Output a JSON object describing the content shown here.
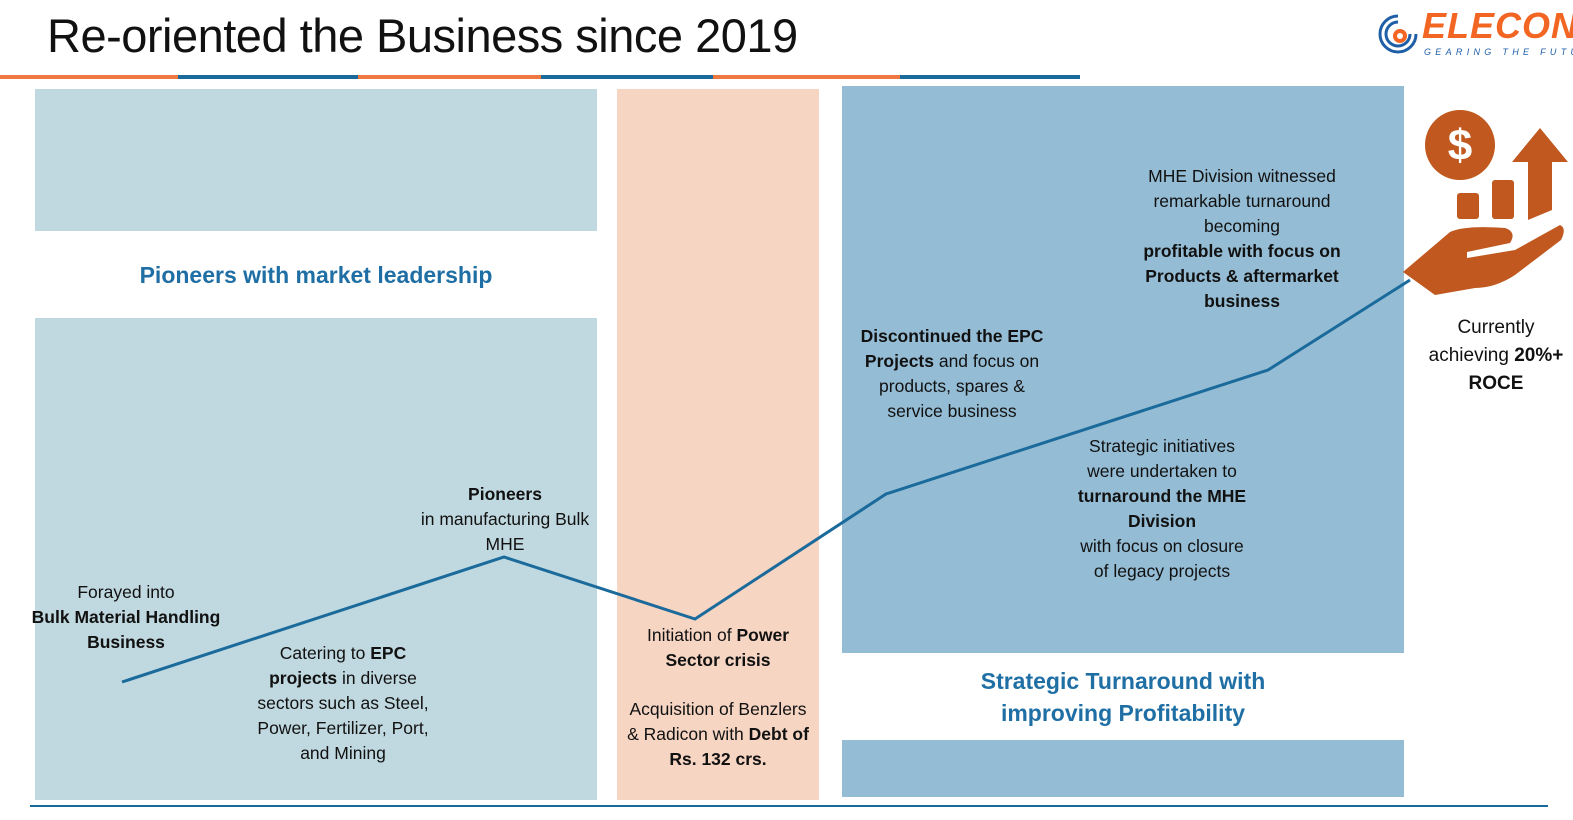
{
  "title": "Re-oriented the Business since 2019",
  "logo": {
    "name": "ELECON",
    "tagline": "GEARING THE FUTURE"
  },
  "colors": {
    "orange": "#ee7742",
    "blue": "#1a6a9b",
    "panel_light": "#c0d8df",
    "panel_peach": "#f6d5c3",
    "panel_blue": "#94bcd4",
    "heading": "#1f6fa5",
    "icon": "#c0581f"
  },
  "sections": {
    "left_heading": "Pioneers with market leadership",
    "right_heading": "Strategic Turnaround with improving Profitability"
  },
  "milestones": {
    "forayed": {
      "pre": "Forayed into",
      "bold": "Bulk Material Handling Business"
    },
    "pioneers": {
      "bold": "Pioneers",
      "post": "in manufacturing Bulk MHE"
    },
    "catering": {
      "pre": "Catering to ",
      "bold": "EPC projects",
      "post": " in diverse sectors such as Steel, Power, Fertilizer, Port, and Mining"
    },
    "crisis": {
      "pre": "Initiation of ",
      "bold": "Power Sector crisis"
    },
    "acquisition": {
      "pre": "Acquisition of Benzlers & Radicon with ",
      "bold": "Debt of Rs. 132 crs."
    },
    "discontinued": {
      "bold": "Discontinued the EPC Projects",
      "post": " and focus on products, spares & service business"
    },
    "strategic": {
      "pre": "Strategic initiatives were undertaken to",
      "bold": "turnaround the MHE Division",
      "post": "with focus on closure of legacy projects"
    },
    "mhe": {
      "pre": "MHE Division witnessed remarkable turnaround becoming",
      "bold": "profitable with focus on Products & aftermarket business"
    },
    "currently": {
      "pre": "Currently achieving ",
      "bold": "20%+ ROCE"
    }
  },
  "icons": {
    "growth": "hand-dollar-growth-icon",
    "logo": "elecon-gear-swirl-icon"
  }
}
